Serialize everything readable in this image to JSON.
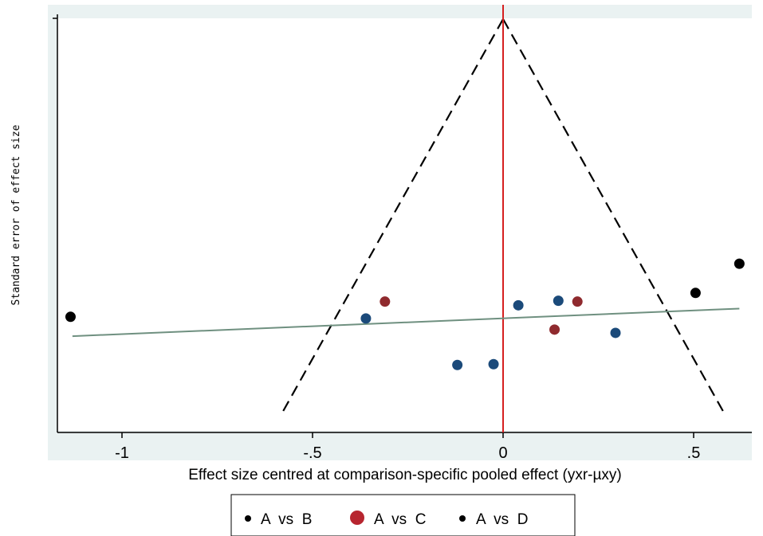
{
  "chart_data": {
    "type": "scatter",
    "title": "",
    "xlabel": "Effect size centred at comparison-specific pooled effect (yxr-µxy)",
    "ylabel": "Standard  error  of  effect  size",
    "xlim": [
      -1.18,
      0.62
    ],
    "ylim": [
      0,
      1
    ],
    "x_ticks": [
      {
        "value": -1,
        "label": "-1"
      },
      {
        "value": -0.5,
        "label": "-.5"
      },
      {
        "value": 0,
        "label": "0"
      },
      {
        "value": 0.5,
        "label": ".5"
      }
    ],
    "grid": false,
    "reference_line": {
      "x": 0,
      "color": "#d62020"
    },
    "funnel": {
      "apex_x": 0,
      "apex_y": 0,
      "left_bottom_x": -0.585,
      "right_bottom_x": 0.585,
      "bottom_y": 0.965,
      "color": "#000000"
    },
    "regression_line": {
      "x": [
        -1.13,
        0.62
      ],
      "y": [
        0.77,
        0.703
      ],
      "color": "#6f9080"
    },
    "series": [
      {
        "name": "A vs B",
        "color": "#1b4a7a",
        "points": [
          [
            -0.36,
            0.727
          ],
          [
            -0.12,
            0.84
          ],
          [
            -0.025,
            0.838
          ],
          [
            0.04,
            0.695
          ],
          [
            0.145,
            0.684
          ],
          [
            0.295,
            0.762
          ]
        ]
      },
      {
        "name": "A vs C",
        "color": "#8f2a2e",
        "points": [
          [
            -0.31,
            0.686
          ],
          [
            0.135,
            0.754
          ],
          [
            0.195,
            0.686
          ]
        ]
      },
      {
        "name": "A vs D",
        "color": "#000000",
        "points": [
          [
            -1.135,
            0.723
          ],
          [
            0.505,
            0.665
          ],
          [
            0.62,
            0.594
          ]
        ]
      }
    ],
    "legend": {
      "placement": "bottom-center",
      "entries": [
        {
          "label": "A  vs  B",
          "color": "#000000",
          "marker": "small"
        },
        {
          "label": "A  vs  C",
          "color": "#b7252f",
          "marker": "large"
        },
        {
          "label": "A  vs  D",
          "color": "#000000",
          "marker": "small"
        }
      ]
    }
  }
}
